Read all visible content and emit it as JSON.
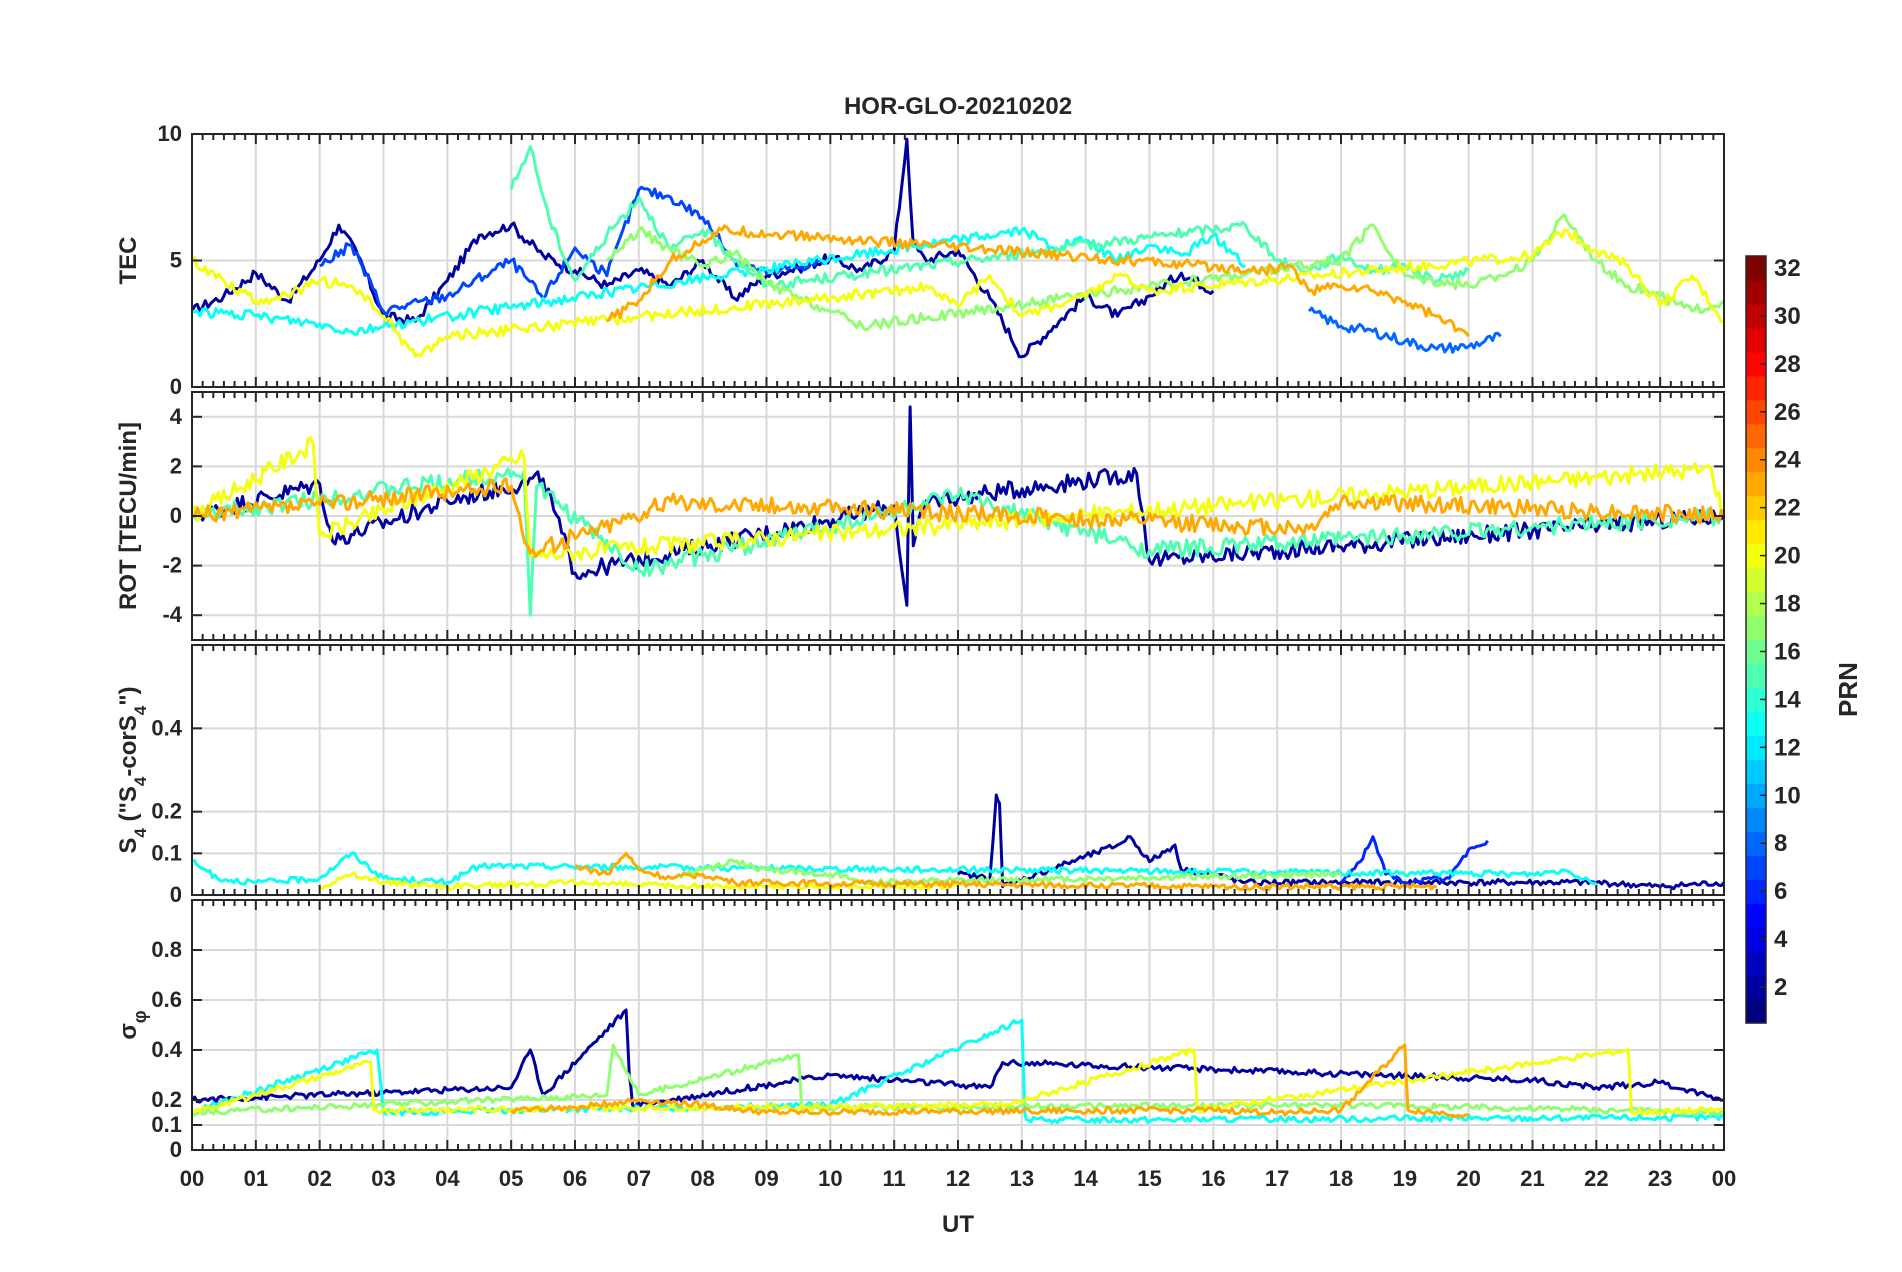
{
  "title": "HOR-GLO-20210202",
  "xlabel": "UT",
  "x_ticks": [
    "00",
    "01",
    "02",
    "03",
    "04",
    "05",
    "06",
    "07",
    "08",
    "09",
    "10",
    "11",
    "12",
    "13",
    "14",
    "15",
    "16",
    "17",
    "18",
    "19",
    "20",
    "21",
    "22",
    "23",
    "00"
  ],
  "colorbar": {
    "label": "PRN",
    "range": [
      1,
      32
    ],
    "ticks": [
      "2",
      "4",
      "6",
      "8",
      "10",
      "12",
      "14",
      "16",
      "18",
      "20",
      "22",
      "24",
      "26",
      "28",
      "30",
      "32"
    ]
  },
  "chart_data": [
    {
      "panel": "tec",
      "type": "line",
      "ylabel": "TEC",
      "ylim": [
        0,
        10
      ],
      "yticks": [
        0,
        5,
        10
      ],
      "ytick_labels": [
        "0",
        "5",
        "10"
      ],
      "series": [
        {
          "prn": 2,
          "x": [
            0,
            0.5,
            1,
            1.5,
            2,
            2.3,
            2.6,
            3.0,
            3.5,
            4.0,
            4.5,
            5.0,
            5.5,
            6.0,
            6.5,
            7.0,
            7.5,
            8.0,
            8.5,
            9.0,
            9.5,
            10.0,
            10.5,
            11.0,
            11.2,
            11.3,
            11.5,
            12.0,
            12.5,
            13.0,
            13.5,
            14.0,
            14.5,
            15.0,
            15.5,
            16.0
          ],
          "y": [
            3.0,
            3.6,
            4.5,
            3.4,
            5.0,
            6.4,
            5.2,
            2.8,
            2.6,
            4.2,
            6.0,
            6.4,
            5.2,
            4.6,
            4.0,
            4.6,
            4.0,
            5.0,
            3.5,
            4.4,
            4.7,
            5.1,
            4.6,
            5.4,
            9.8,
            5.6,
            5.0,
            5.4,
            3.5,
            1.2,
            2.4,
            3.6,
            2.8,
            3.6,
            4.5,
            3.8
          ]
        },
        {
          "prn": 7,
          "x": [
            2.0,
            2.5,
            3.0,
            4.0,
            5.0,
            5.5,
            6.0,
            6.5,
            7.0,
            7.5,
            8.0,
            8.5,
            9.0,
            10.0
          ],
          "y": [
            4.8,
            5.6,
            3.0,
            3.6,
            5.0,
            3.5,
            5.5,
            4.4,
            7.8,
            7.5,
            6.7,
            5.0,
            4.5,
            5.0
          ]
        },
        {
          "prn": 8,
          "x": [
            17.5,
            18.0,
            18.5,
            19.0,
            19.5,
            20.0,
            20.5
          ],
          "y": [
            3.0,
            2.4,
            2.2,
            1.8,
            1.5,
            1.6,
            2.0
          ]
        },
        {
          "prn": 13,
          "x": [
            0,
            1.0,
            2.0,
            2.5,
            3.0,
            13.0,
            13.5,
            14.0,
            14.5,
            15.0,
            15.5,
            16.0,
            16.5
          ],
          "y": [
            3.0,
            2.8,
            2.5,
            2.2,
            2.4,
            6.2,
            5.5,
            5.8,
            5.0,
            5.6,
            5.2,
            6.0,
            4.8
          ]
        },
        {
          "prn": 15,
          "x": [
            5.0,
            5.3,
            5.6,
            6.0,
            6.5,
            7.0,
            7.5,
            8.0,
            9.0,
            16.5,
            17.0,
            17.5,
            18.0,
            18.5,
            19.0,
            19.5,
            20.0
          ],
          "y": [
            7.8,
            9.5,
            6.6,
            4.2,
            6.0,
            7.5,
            5.4,
            6.2,
            4.0,
            6.4,
            5.0,
            4.6,
            5.2,
            4.6,
            4.8,
            4.2,
            4.6
          ]
        },
        {
          "prn": 17,
          "x": [
            6.5,
            7.0,
            7.5,
            8.0,
            8.5,
            9.0,
            9.5,
            10.0,
            10.5,
            18.0,
            18.5,
            19.0,
            20.0,
            20.5,
            21.0,
            21.5,
            22.0,
            22.5,
            23.0,
            23.5,
            24.0
          ],
          "y": [
            5.0,
            6.2,
            5.4,
            4.8,
            5.3,
            4.1,
            3.5,
            3.0,
            2.4,
            5.0,
            6.4,
            4.4,
            4.0,
            4.4,
            5.0,
            6.8,
            5.0,
            4.0,
            3.6,
            3.0,
            3.4
          ]
        },
        {
          "prn": 20,
          "x": [
            0,
            0.5,
            1.0,
            1.5,
            2.0,
            2.5,
            3.0,
            3.5,
            4.0,
            11.0,
            11.5,
            12.0,
            12.5,
            13.0,
            13.5,
            14.0,
            14.5,
            15.0,
            21.0,
            21.5,
            22.0,
            22.5,
            23.0,
            23.5,
            24.0
          ],
          "y": [
            5.0,
            4.2,
            3.4,
            3.6,
            4.2,
            4.0,
            2.8,
            1.2,
            2.0,
            3.8,
            4.0,
            3.2,
            4.4,
            2.8,
            3.2,
            3.6,
            4.4,
            3.8,
            5.2,
            6.2,
            5.4,
            4.8,
            3.2,
            4.4,
            2.6
          ]
        },
        {
          "prn": 23,
          "x": [
            6.5,
            7.0,
            7.5,
            8.0,
            8.3,
            16.8,
            17.2,
            17.5,
            18.0,
            18.5,
            19.0,
            19.5,
            20.0
          ],
          "y": [
            2.6,
            3.4,
            5.0,
            5.8,
            6.2,
            4.6,
            4.8,
            3.8,
            4.0,
            3.8,
            3.4,
            2.8,
            2.0
          ]
        }
      ]
    },
    {
      "panel": "rot",
      "type": "line",
      "ylabel": "ROT [TECU/min]",
      "ylim": [
        -5,
        5
      ],
      "yticks": [
        -4,
        -2,
        0,
        2,
        4
      ],
      "ytick_labels": [
        "-4",
        "-2",
        "0",
        "2",
        "4"
      ],
      "series": [
        {
          "prn": 2,
          "x": [
            0,
            2.0,
            2.2,
            4.0,
            5.5,
            6.0,
            11.0,
            11.2,
            11.25,
            11.3,
            11.5,
            14.8,
            15.0,
            24.0
          ],
          "y": [
            0,
            1.3,
            -1.0,
            0.6,
            1.5,
            -2.3,
            0.4,
            -3.6,
            4.4,
            -1.2,
            0.6,
            1.7,
            -1.8,
            0
          ]
        },
        {
          "prn": 15,
          "x": [
            0,
            5.2,
            5.3,
            5.4,
            7.0,
            12.0,
            15.0,
            24.0
          ],
          "y": [
            0,
            1.8,
            -4.0,
            1.2,
            -2.2,
            0.8,
            -1.4,
            0
          ]
        },
        {
          "prn": 20,
          "x": [
            0,
            1.9,
            2.0,
            5.2,
            5.3,
            23.8,
            24.0
          ],
          "y": [
            0,
            2.9,
            -0.8,
            2.4,
            -1.6,
            1.9,
            0
          ]
        },
        {
          "prn": 23,
          "x": [
            0,
            5.0,
            5.3,
            7.5,
            17.5,
            18.0,
            24.0
          ],
          "y": [
            0,
            1.2,
            -1.5,
            0.6,
            -0.5,
            0.6,
            0
          ]
        }
      ]
    },
    {
      "panel": "s4",
      "type": "line",
      "ylabel": "S4 (\"S4-corS4\")",
      "ylabel_main": "S",
      "ylabel_sub": "4",
      "ylabel_mid": " (\"S",
      "ylabel_sub2": "4",
      "ylabel_mid2": "-corS",
      "ylabel_sub3": "4",
      "ylabel_end": "\")",
      "ylim": [
        0,
        0.6
      ],
      "yticks": [
        0,
        0.1,
        0.2,
        0.4
      ],
      "ytick_labels": [
        "0",
        "0.1",
        "0.2",
        "0.4"
      ],
      "series": [
        {
          "prn": 2,
          "x": [
            12.0,
            12.5,
            12.6,
            12.65,
            12.7,
            14.5,
            14.7,
            15.0,
            15.4,
            15.5,
            16.0,
            16.5,
            22.0,
            23.0,
            24.0
          ],
          "y": [
            0.05,
            0.04,
            0.24,
            0.22,
            0.02,
            0.12,
            0.14,
            0.08,
            0.12,
            0.06,
            0.05,
            0.03,
            0.03,
            0.02,
            0.03
          ]
        },
        {
          "prn": 6,
          "x": [
            18.0,
            18.3,
            18.5,
            18.7,
            19.0,
            19.7,
            20.0,
            20.3
          ],
          "y": [
            0.03,
            0.08,
            0.14,
            0.05,
            0.03,
            0.04,
            0.11,
            0.13
          ]
        },
        {
          "prn": 13,
          "x": [
            0,
            0.4,
            1.0,
            2.0,
            2.5,
            3.0,
            4.0,
            4.5,
            21.0,
            21.5,
            22.0
          ],
          "y": [
            0.08,
            0.04,
            0.03,
            0.04,
            0.1,
            0.04,
            0.03,
            0.07,
            0.05,
            0.06,
            0.03
          ]
        },
        {
          "prn": 17,
          "x": [
            7.5,
            8.0,
            8.5,
            9.0,
            10.0,
            10.5,
            18.0
          ],
          "y": [
            0.04,
            0.06,
            0.08,
            0.06,
            0.05,
            0.03,
            0.05
          ]
        },
        {
          "prn": 20,
          "x": [
            2.0,
            2.5,
            3.0,
            4.0,
            6.0,
            8.0,
            12.0
          ],
          "y": [
            0.02,
            0.05,
            0.03,
            0.02,
            0.03,
            0.02,
            0.02
          ]
        },
        {
          "prn": 23,
          "x": [
            6.0,
            6.5,
            6.8,
            7.0,
            7.5,
            8.0,
            8.5,
            16.0,
            17.0,
            18.0,
            19.0,
            19.5
          ],
          "y": [
            0.07,
            0.05,
            0.1,
            0.06,
            0.04,
            0.05,
            0.03,
            0.02,
            0.02,
            0.02,
            0.02,
            0.02
          ]
        }
      ]
    },
    {
      "panel": "sigma",
      "type": "line",
      "ylabel": "σφ",
      "ylabel_main": "σ",
      "ylabel_sub": "φ",
      "ylim": [
        0,
        1
      ],
      "yticks": [
        0,
        0.1,
        0.2,
        0.4,
        0.6,
        0.8
      ],
      "ytick_labels": [
        "0",
        "0.1",
        "0.2",
        "0.4",
        "0.6",
        "0.8"
      ],
      "series": [
        {
          "prn": 2,
          "x": [
            0,
            5.0,
            5.3,
            5.5,
            6.8,
            6.85,
            6.9,
            7.5,
            10.0,
            11.0,
            12.5,
            12.7,
            21.0,
            22.0,
            23.0,
            24.0
          ],
          "y": [
            0.2,
            0.25,
            0.4,
            0.22,
            0.56,
            0.3,
            0.18,
            0.2,
            0.3,
            0.28,
            0.25,
            0.35,
            0.28,
            0.25,
            0.27,
            0.2
          ]
        },
        {
          "prn": 13,
          "x": [
            0,
            2.9,
            3.0,
            10.0,
            13.0,
            13.05,
            13.1,
            24.0
          ],
          "y": [
            0.15,
            0.4,
            0.15,
            0.18,
            0.52,
            0.14,
            0.12,
            0.13
          ]
        },
        {
          "prn": 17,
          "x": [
            0,
            6.5,
            6.6,
            7.0,
            9.5,
            9.55,
            18.5,
            24.0
          ],
          "y": [
            0.15,
            0.22,
            0.42,
            0.22,
            0.38,
            0.17,
            0.18,
            0.15
          ]
        },
        {
          "prn": 20,
          "x": [
            0,
            2.8,
            2.85,
            12.8,
            15.7,
            15.75,
            22.5,
            22.55,
            24.0
          ],
          "y": [
            0.15,
            0.35,
            0.16,
            0.18,
            0.4,
            0.16,
            0.4,
            0.15,
            0.16
          ]
        },
        {
          "prn": 23,
          "x": [
            5.0,
            6.0,
            7.0,
            8.0,
            9.0,
            16.0,
            17.0,
            18.0,
            19.0,
            19.05,
            19.5,
            20.0
          ],
          "y": [
            0.16,
            0.17,
            0.2,
            0.18,
            0.15,
            0.16,
            0.15,
            0.16,
            0.42,
            0.16,
            0.15,
            0.14
          ]
        }
      ]
    }
  ]
}
